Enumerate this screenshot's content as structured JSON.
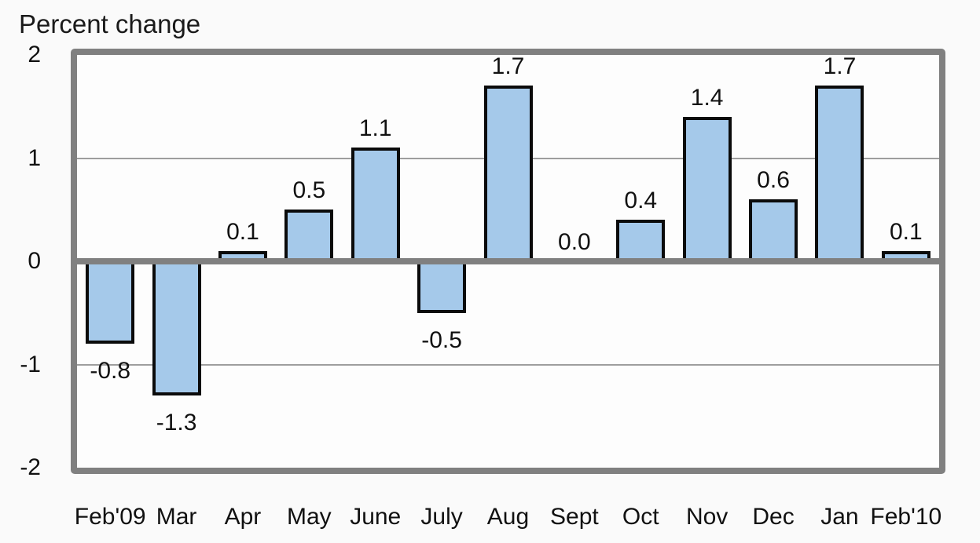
{
  "chart_data": {
    "type": "bar",
    "title": "Percent change",
    "categories": [
      "Feb'09",
      "Mar",
      "Apr",
      "May",
      "June",
      "July",
      "Aug",
      "Sept",
      "Oct",
      "Nov",
      "Dec",
      "Jan",
      "Feb'10"
    ],
    "values": [
      -0.8,
      -1.3,
      0.1,
      0.5,
      1.1,
      -0.5,
      1.7,
      0.0,
      0.4,
      1.4,
      0.6,
      1.7,
      0.1
    ],
    "value_labels": [
      "-0.8",
      "-1.3",
      "0.1",
      "0.5",
      "1.1",
      "-0.5",
      "1.7",
      "0.0",
      "0.4",
      "1.4",
      "0.6",
      "1.7",
      "0.1"
    ],
    "xlabel": "",
    "ylabel": "",
    "ylim": [
      -2,
      2
    ],
    "yticks": [
      2,
      1,
      0,
      -1,
      -2
    ],
    "ytick_labels": [
      "2",
      "1",
      "0",
      "-1",
      "-2"
    ],
    "grid": true,
    "legend": "none",
    "colors": {
      "bar_fill": "#A5C9EA",
      "bar_border": "#0b0b0b",
      "frame": "#808080",
      "gridline": "#9e9e9e",
      "text": "#111111",
      "background": "#fafafa",
      "plot_background": "#fdfdfd"
    }
  }
}
